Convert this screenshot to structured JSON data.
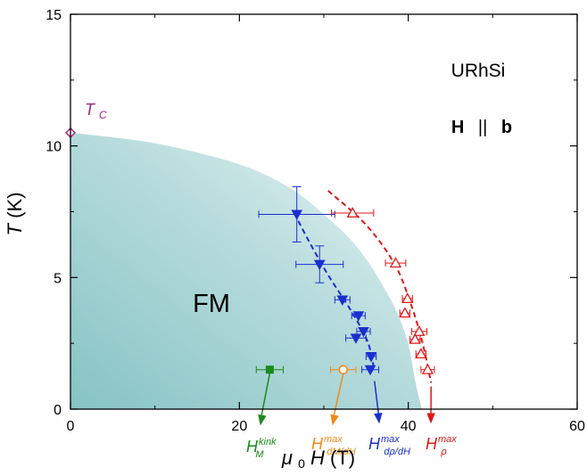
{
  "chart_data": {
    "type": "scatter",
    "title": "",
    "xlabel": {
      "mu": "μ",
      "mu_sub": "0",
      "var": "H",
      "unit": " (T)"
    },
    "ylabel": {
      "var": "T",
      "unit": " (K)"
    },
    "xlim": [
      0,
      60
    ],
    "ylim": [
      0,
      15
    ],
    "x_ticks": [
      "0",
      "20",
      "40",
      "60"
    ],
    "y_ticks": [
      "0",
      "5",
      "10",
      "15"
    ],
    "x_tick_values": [
      0,
      20,
      40,
      60
    ],
    "y_tick_values": [
      0,
      5,
      10,
      15
    ],
    "minor_x_ticks": [
      10,
      30,
      50
    ],
    "minor_y_ticks": [
      2.5,
      7.5,
      12.5
    ],
    "annotations": {
      "compound": "URhSi",
      "field_symbol": "H",
      "field_parallel": "||",
      "field_axis": "b",
      "phase": "FM",
      "tc_label": "T",
      "tc_sub": "C"
    },
    "fm_region": {
      "tc": 10.5,
      "boundary": [
        [
          0,
          10.5
        ],
        [
          10,
          10.1
        ],
        [
          20,
          9.3
        ],
        [
          26,
          8.4
        ],
        [
          30,
          7.4
        ],
        [
          33,
          6.5
        ],
        [
          35,
          5.7
        ],
        [
          36.8,
          4.8
        ],
        [
          38.5,
          3.8
        ],
        [
          39.6,
          2.9
        ],
        [
          40.2,
          2.2
        ],
        [
          40.8,
          1.1
        ],
        [
          41.6,
          0
        ]
      ],
      "fill_color": "#8ec7c8"
    },
    "tc_point": {
      "x": 0,
      "y": 10.5,
      "color": "#a0257a"
    },
    "series": [
      {
        "name": "H_M^kink",
        "color": "#1a8a1a",
        "marker": "square-filled",
        "points": [
          {
            "x": 23.6,
            "y": 1.5,
            "xerr": 1.6,
            "yerr": 0
          }
        ]
      },
      {
        "name": "H_dM/dH^max",
        "color": "#ee8a1b",
        "marker": "circle-open",
        "points": [
          {
            "x": 32.3,
            "y": 1.5,
            "xerr": 1.5,
            "yerr": 0
          }
        ]
      },
      {
        "name": "H_dρ/dH^max",
        "color": "#1a2fcf",
        "marker": "triangle-down-filled",
        "points": [
          {
            "x": 26.8,
            "y": 7.4,
            "xerr": 4.5,
            "yerr": 1.05
          },
          {
            "x": 29.5,
            "y": 5.5,
            "xerr": 2.8,
            "yerr": 0.7
          },
          {
            "x": 32.2,
            "y": 4.15,
            "xerr": 0.9,
            "yerr": 0
          },
          {
            "x": 34.1,
            "y": 3.55,
            "xerr": 0.8,
            "yerr": 0
          },
          {
            "x": 34.7,
            "y": 2.95,
            "xerr": 0.8,
            "yerr": 0
          },
          {
            "x": 33.8,
            "y": 2.7,
            "xerr": 1.2,
            "yerr": 0
          },
          {
            "x": 35.6,
            "y": 2.0,
            "xerr": 0.6,
            "yerr": 0
          },
          {
            "x": 35.5,
            "y": 1.5,
            "xerr": 1.0,
            "yerr": 0
          }
        ],
        "trend": [
          [
            26.5,
            7.45
          ],
          [
            28.2,
            6.4
          ],
          [
            30.5,
            5.1
          ],
          [
            33.3,
            3.7
          ],
          [
            35.2,
            2.55
          ],
          [
            36.0,
            1.45
          ]
        ]
      },
      {
        "name": "H_ρ^max",
        "color": "#e01818",
        "marker": "triangle-up-open",
        "points": [
          {
            "x": 33.4,
            "y": 7.45,
            "xerr": 2.5,
            "yerr": 0
          },
          {
            "x": 38.5,
            "y": 5.55,
            "xerr": 1.2,
            "yerr": 0
          },
          {
            "x": 39.9,
            "y": 4.2,
            "xerr": 0.6,
            "yerr": 0
          },
          {
            "x": 39.6,
            "y": 3.65,
            "xerr": 0.6,
            "yerr": 0
          },
          {
            "x": 41.3,
            "y": 2.95,
            "xerr": 0.9,
            "yerr": 0
          },
          {
            "x": 40.8,
            "y": 2.65,
            "xerr": 0.6,
            "yerr": 0
          },
          {
            "x": 41.5,
            "y": 2.1,
            "xerr": 0.6,
            "yerr": 0
          },
          {
            "x": 42.3,
            "y": 1.5,
            "xerr": 0.8,
            "yerr": 0
          }
        ],
        "trend": [
          [
            30.5,
            8.3
          ],
          [
            35.0,
            7.0
          ],
          [
            38.4,
            5.5
          ],
          [
            40.3,
            4.0
          ],
          [
            41.7,
            2.5
          ],
          [
            42.7,
            1.0
          ]
        ]
      }
    ],
    "arrows": [
      {
        "series": "H_M^kink",
        "color": "#1a8a1a",
        "from_data": [
          23.6,
          1.5
        ],
        "label": {
          "base": "H",
          "sub": "M",
          "sup": "kink"
        }
      },
      {
        "series": "H_dM/dH^max",
        "color": "#ee8a1b",
        "from_data": [
          32.3,
          1.5
        ],
        "label": {
          "base": "H",
          "sub": "dM/dH",
          "sup": "max"
        }
      },
      {
        "series": "H_dρ/dH^max",
        "color": "#1a2fcf",
        "from_data": [
          36.0,
          1.2
        ],
        "label": {
          "base": "H",
          "sub": "dρ/dH",
          "sup": "max"
        }
      },
      {
        "series": "H_ρ^max",
        "color": "#e01818",
        "from_data": [
          42.7,
          1.0
        ],
        "label": {
          "base": "H",
          "sub": "ρ",
          "sup": "max"
        }
      }
    ]
  }
}
